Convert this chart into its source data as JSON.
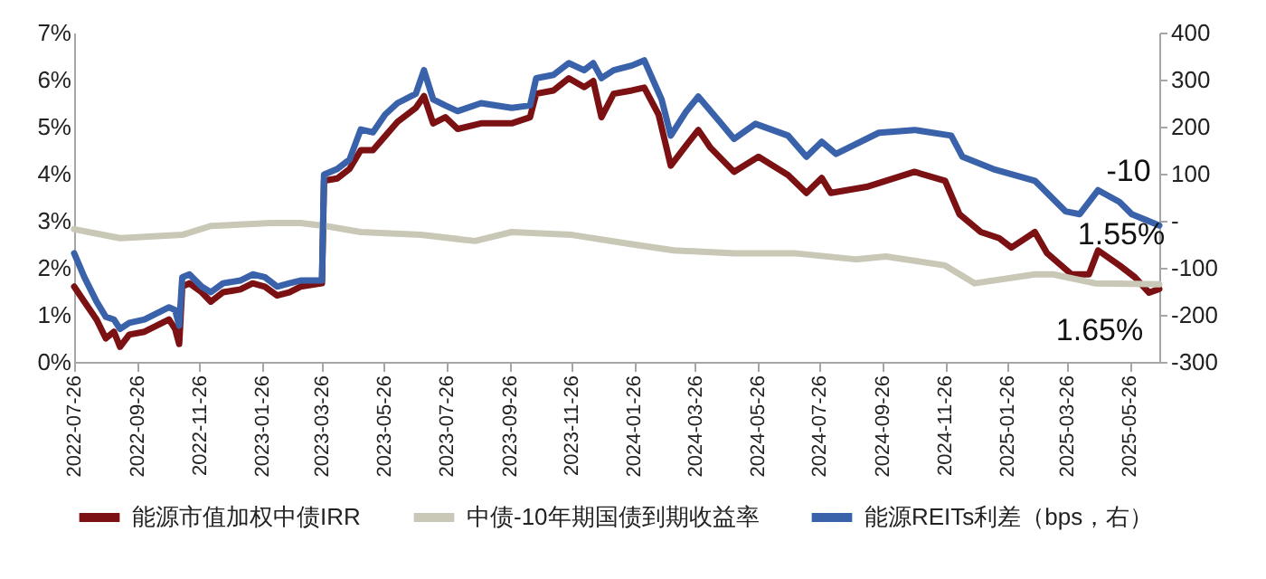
{
  "chart_data": {
    "type": "line",
    "xlim": [
      "2022-07-26",
      "2025-06-24"
    ],
    "xticks": [
      "2022-07-26",
      "2022-09-26",
      "2022-11-26",
      "2023-01-26",
      "2023-03-26",
      "2023-05-26",
      "2023-07-26",
      "2023-09-26",
      "2023-11-26",
      "2024-01-26",
      "2024-03-26",
      "2024-05-26",
      "2024-07-26",
      "2024-09-26",
      "2024-11-26",
      "2025-01-26",
      "2025-03-26",
      "2025-05-26"
    ],
    "ylim": [
      0,
      7
    ],
    "yticks": [
      {
        "value": 0,
        "label": "0%"
      },
      {
        "value": 1,
        "label": "1%"
      },
      {
        "value": 2,
        "label": "2%"
      },
      {
        "value": 3,
        "label": "3%"
      },
      {
        "value": 4,
        "label": "4%"
      },
      {
        "value": 5,
        "label": "5%"
      },
      {
        "value": 6,
        "label": "6%"
      },
      {
        "value": 7,
        "label": "7%"
      }
    ],
    "y2lim": [
      -300,
      400
    ],
    "y2ticks": [
      -300,
      -200,
      -100,
      {
        "value": 0,
        "label": "-"
      },
      100,
      200,
      300,
      400
    ],
    "legend": "bottom",
    "annotations": [
      "-10",
      "1.55%",
      "1.65%"
    ],
    "series": [
      {
        "name": "能源市值加权中债IRR",
        "color": "#7b1113",
        "x": [
          "2022-07-26",
          "2022-08-05",
          "2022-08-17",
          "2022-08-26",
          "2022-09-03",
          "2022-09-09",
          "2022-09-18",
          "2022-10-03",
          "2022-10-15",
          "2022-10-27",
          "2022-11-02",
          "2022-11-06",
          "2022-11-09",
          "2022-11-16",
          "2022-11-28",
          "2022-12-07",
          "2022-12-19",
          "2023-01-05",
          "2023-01-17",
          "2023-01-29",
          "2023-02-10",
          "2023-02-22",
          "2023-03-05",
          "2023-03-26",
          "2023-03-28",
          "2023-04-10",
          "2023-04-22",
          "2023-05-03",
          "2023-05-15",
          "2023-05-27",
          "2023-06-08",
          "2023-06-26",
          "2023-07-04",
          "2023-07-13",
          "2023-07-25",
          "2023-08-06",
          "2023-08-29",
          "2023-09-28",
          "2023-10-16",
          "2023-10-22",
          "2023-11-08",
          "2023-11-23",
          "2023-12-08",
          "2023-12-17",
          "2023-12-25",
          "2024-01-06",
          "2024-01-24",
          "2024-02-05",
          "2024-02-19",
          "2024-03-02",
          "2024-03-17",
          "2024-03-29",
          "2024-04-10",
          "2024-05-03",
          "2024-05-27",
          "2024-06-25",
          "2024-07-13",
          "2024-07-28",
          "2024-08-06",
          "2024-09-10",
          "2024-10-27",
          "2024-11-26",
          "2024-12-10",
          "2024-12-31",
          "2025-01-18",
          "2025-01-30",
          "2025-02-22",
          "2025-03-06",
          "2025-03-30",
          "2025-04-16",
          "2025-04-25",
          "2025-05-16",
          "2025-05-31",
          "2025-06-14",
          "2025-06-24"
        ],
        "values": [
          1.6,
          1.28,
          0.9,
          0.5,
          0.64,
          0.32,
          0.58,
          0.64,
          0.77,
          0.9,
          0.7,
          0.38,
          1.6,
          1.67,
          1.48,
          1.28,
          1.48,
          1.54,
          1.67,
          1.6,
          1.41,
          1.48,
          1.6,
          1.67,
          3.85,
          3.9,
          4.1,
          4.5,
          4.5,
          4.8,
          5.1,
          5.4,
          5.65,
          5.07,
          5.2,
          4.95,
          5.07,
          5.07,
          5.2,
          5.7,
          5.77,
          6.03,
          5.84,
          5.97,
          5.2,
          5.7,
          5.77,
          5.83,
          5.26,
          4.17,
          4.6,
          4.93,
          4.55,
          4.04,
          4.36,
          3.97,
          3.59,
          3.91,
          3.59,
          3.72,
          4.04,
          3.85,
          3.14,
          2.76,
          2.63,
          2.43,
          2.76,
          2.31,
          1.86,
          1.86,
          2.37,
          2.05,
          1.8,
          1.47,
          1.55
        ]
      },
      {
        "name": "中债-10年期国债到期收益率",
        "color": "#c9c7b6",
        "x": [
          "2022-07-26",
          "2022-09-09",
          "2022-11-09",
          "2022-12-07",
          "2023-02-04",
          "2023-03-05",
          "2023-03-29",
          "2023-05-03",
          "2023-07-01",
          "2023-08-23",
          "2023-09-28",
          "2023-11-26",
          "2024-01-24",
          "2024-03-05",
          "2024-05-03",
          "2024-07-01",
          "2024-08-30",
          "2024-09-29",
          "2024-11-26",
          "2024-12-25",
          "2025-02-22",
          "2025-03-12",
          "2025-04-22",
          "2025-06-24"
        ],
        "values": [
          2.82,
          2.63,
          2.7,
          2.89,
          2.95,
          2.95,
          2.89,
          2.76,
          2.7,
          2.57,
          2.76,
          2.7,
          2.5,
          2.37,
          2.31,
          2.31,
          2.18,
          2.24,
          2.05,
          1.67,
          1.86,
          1.86,
          1.67,
          1.65
        ]
      },
      {
        "name": "能源REITs利差（bps，右）",
        "color": "#3a62aa",
        "axis": "y2",
        "x": [
          "2022-07-26",
          "2022-08-05",
          "2022-08-17",
          "2022-08-26",
          "2022-09-03",
          "2022-09-09",
          "2022-09-18",
          "2022-10-03",
          "2022-10-15",
          "2022-10-27",
          "2022-11-02",
          "2022-11-06",
          "2022-11-09",
          "2022-11-16",
          "2022-11-28",
          "2022-12-07",
          "2022-12-19",
          "2023-01-05",
          "2023-01-17",
          "2023-01-29",
          "2023-02-10",
          "2023-02-22",
          "2023-03-05",
          "2023-03-26",
          "2023-03-28",
          "2023-04-10",
          "2023-04-22",
          "2023-05-03",
          "2023-05-15",
          "2023-05-27",
          "2023-06-08",
          "2023-06-26",
          "2023-07-04",
          "2023-07-13",
          "2023-07-25",
          "2023-08-06",
          "2023-08-29",
          "2023-09-28",
          "2023-10-16",
          "2023-10-22",
          "2023-11-08",
          "2023-11-23",
          "2023-12-08",
          "2023-12-17",
          "2023-12-25",
          "2024-01-06",
          "2024-01-24",
          "2024-02-05",
          "2024-02-22",
          "2024-03-02",
          "2024-03-17",
          "2024-03-29",
          "2024-04-18",
          "2024-05-03",
          "2024-05-24",
          "2024-06-25",
          "2024-07-13",
          "2024-07-28",
          "2024-08-11",
          "2024-09-22",
          "2024-10-27",
          "2024-12-02",
          "2024-12-13",
          "2025-01-12",
          "2025-02-22",
          "2025-03-24",
          "2025-04-07",
          "2025-04-25",
          "2025-05-16",
          "2025-05-28",
          "2025-06-24"
        ],
        "values": [
          -69,
          -120,
          -172,
          -204,
          -210,
          -230,
          -217,
          -210,
          -197,
          -184,
          -190,
          -223,
          -120,
          -114,
          -140,
          -152,
          -133,
          -127,
          -114,
          -120,
          -140,
          -133,
          -127,
          -127,
          98,
          110,
          130,
          194,
          188,
          226,
          250,
          270,
          320,
          258,
          245,
          233,
          250,
          240,
          245,
          303,
          310,
          335,
          320,
          335,
          303,
          320,
          330,
          341,
          258,
          181,
          232,
          264,
          213,
          174,
          206,
          181,
          136,
          168,
          142,
          187,
          193,
          181,
          136,
          110,
          85,
          20,
          14,
          65,
          40,
          14,
          -10
        ]
      }
    ]
  }
}
